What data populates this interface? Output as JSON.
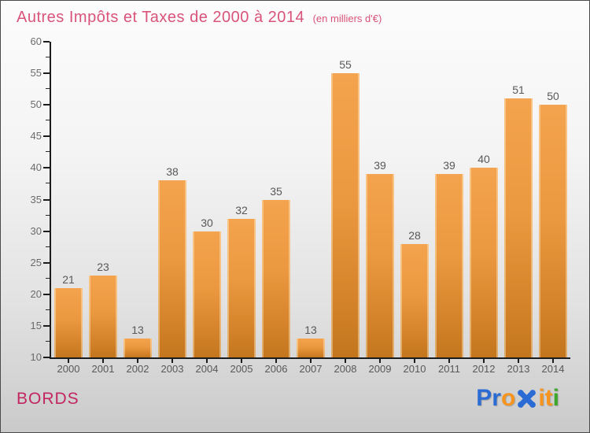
{
  "header": {
    "title": "Autres Impôts et Taxes de 2000 à 2014",
    "subtitle": "(en milliers d'€)"
  },
  "chart_data": {
    "type": "bar",
    "title": "Autres Impôts et Taxes de 2000 à 2014 (en milliers d'€)",
    "categories": [
      "2000",
      "2001",
      "2002",
      "2003",
      "2004",
      "2005",
      "2006",
      "2007",
      "2008",
      "2009",
      "2010",
      "2011",
      "2012",
      "2013",
      "2014"
    ],
    "values": [
      21,
      23,
      13,
      38,
      30,
      32,
      35,
      13,
      55,
      39,
      28,
      39,
      40,
      51,
      50
    ],
    "xlabel": "",
    "ylabel": "",
    "ylim": [
      10,
      60
    ],
    "ytick_step": 5,
    "yminor_step": 2.5,
    "grid": false,
    "legend": false,
    "bar_color_top": "#f4a34e",
    "bar_color_bottom": "#c3761e",
    "axis_color": "#1c1c1c",
    "label_color": "#58585a"
  },
  "footer": {
    "location": "BORDS",
    "brand": {
      "name": "Proxiti",
      "letters": [
        {
          "char": "P",
          "color": "#2b6bd4"
        },
        {
          "char": "r",
          "color": "#2b6bd4"
        },
        {
          "char": "o",
          "color": "#f7941d"
        },
        {
          "char": "X",
          "color": "#2b6bd4",
          "icon": true
        },
        {
          "char": "i",
          "color": "#f7941d"
        },
        {
          "char": "t",
          "color": "#f7941d"
        },
        {
          "char": "i",
          "color": "#3fa62c"
        }
      ]
    }
  },
  "colors": {
    "title_pink": "#d9537a",
    "location_pink": "#c32561",
    "background_top": "#fcfcfc",
    "background_bottom": "#cacaca"
  }
}
